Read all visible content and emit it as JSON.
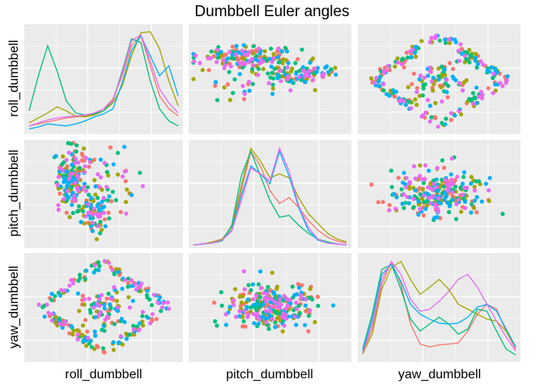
{
  "chart_data": {
    "type": "scatter",
    "title": "Dumbbell Euler angles",
    "variables": [
      "roll_dumbbell",
      "pitch_dumbbell",
      "yaw_dumbbell"
    ],
    "xlabels": [
      "roll_dumbbell",
      "pitch_dumbbell",
      "yaw_dumbbell"
    ],
    "ylabels": [
      "roll_dumbbell",
      "pitch_dumbbell",
      "yaw_dumbbell"
    ],
    "layout": "3x3 scatterplot matrix with density curves on the diagonal",
    "grid": true,
    "legend": "none",
    "panel_background": "#ebebeb",
    "gridline_color": "#ffffff",
    "colors": [
      "#f8766d",
      "#a3a500",
      "#00bf7d",
      "#00b0f6",
      "#e76bf3"
    ],
    "densities": {
      "roll_dumbbell": [
        [
          0.05,
          0.07,
          0.09,
          0.11,
          0.13,
          0.14,
          0.15,
          0.17,
          0.22,
          0.32,
          0.55,
          0.85,
          0.95,
          0.65,
          0.35,
          0.22,
          0.15
        ],
        [
          0.08,
          0.13,
          0.18,
          0.24,
          0.2,
          0.15,
          0.14,
          0.16,
          0.2,
          0.28,
          0.45,
          0.75,
          0.98,
          0.99,
          0.82,
          0.5,
          0.25
        ],
        [
          0.2,
          0.55,
          0.85,
          0.6,
          0.3,
          0.18,
          0.16,
          0.17,
          0.2,
          0.3,
          0.6,
          0.92,
          0.88,
          0.5,
          0.22,
          0.1,
          0.05
        ],
        [
          0.02,
          0.04,
          0.07,
          0.06,
          0.05,
          0.07,
          0.1,
          0.14,
          0.17,
          0.22,
          0.48,
          0.8,
          0.95,
          0.75,
          0.55,
          0.65,
          0.35
        ],
        [
          0.05,
          0.08,
          0.11,
          0.13,
          0.14,
          0.15,
          0.16,
          0.18,
          0.22,
          0.3,
          0.58,
          0.9,
          0.96,
          0.7,
          0.42,
          0.28,
          0.18
        ]
      ],
      "pitch_dumbbell": [
        [
          0.0,
          0.01,
          0.03,
          0.06,
          0.15,
          0.55,
          0.95,
          0.8,
          0.55,
          0.42,
          0.48,
          0.38,
          0.25,
          0.15,
          0.08,
          0.04,
          0.02
        ],
        [
          0.0,
          0.01,
          0.03,
          0.06,
          0.18,
          0.6,
          0.98,
          0.85,
          0.68,
          0.72,
          0.68,
          0.48,
          0.32,
          0.22,
          0.12,
          0.06,
          0.03
        ],
        [
          0.0,
          0.01,
          0.02,
          0.04,
          0.2,
          0.7,
          0.95,
          0.7,
          0.45,
          0.28,
          0.3,
          0.2,
          0.12,
          0.06,
          0.03,
          0.01,
          0.0
        ],
        [
          0.0,
          0.01,
          0.02,
          0.05,
          0.15,
          0.5,
          0.8,
          0.72,
          0.62,
          0.95,
          0.7,
          0.38,
          0.15,
          0.05,
          0.02,
          0.01,
          0.0
        ],
        [
          0.0,
          0.01,
          0.02,
          0.05,
          0.14,
          0.45,
          0.78,
          0.72,
          0.65,
          0.98,
          0.75,
          0.4,
          0.18,
          0.06,
          0.02,
          0.01,
          0.0
        ]
      ],
      "yaw_dumbbell": [
        [
          0.06,
          0.3,
          0.75,
          0.98,
          0.75,
          0.35,
          0.15,
          0.12,
          0.14,
          0.15,
          0.16,
          0.28,
          0.45,
          0.55,
          0.5,
          0.28,
          0.1
        ],
        [
          0.05,
          0.25,
          0.7,
          0.92,
          0.98,
          0.8,
          0.65,
          0.72,
          0.8,
          0.7,
          0.55,
          0.5,
          0.45,
          0.4,
          0.38,
          0.28,
          0.12
        ],
        [
          0.1,
          0.45,
          0.9,
          0.95,
          0.7,
          0.4,
          0.28,
          0.35,
          0.42,
          0.35,
          0.25,
          0.3,
          0.5,
          0.48,
          0.28,
          0.1,
          0.04
        ],
        [
          0.08,
          0.4,
          0.85,
          0.95,
          0.78,
          0.55,
          0.45,
          0.4,
          0.36,
          0.35,
          0.36,
          0.42,
          0.52,
          0.55,
          0.48,
          0.3,
          0.12
        ],
        [
          0.06,
          0.35,
          0.8,
          0.98,
          0.85,
          0.6,
          0.48,
          0.5,
          0.58,
          0.68,
          0.8,
          0.85,
          0.72,
          0.55,
          0.38,
          0.22,
          0.08
        ]
      ]
    }
  }
}
